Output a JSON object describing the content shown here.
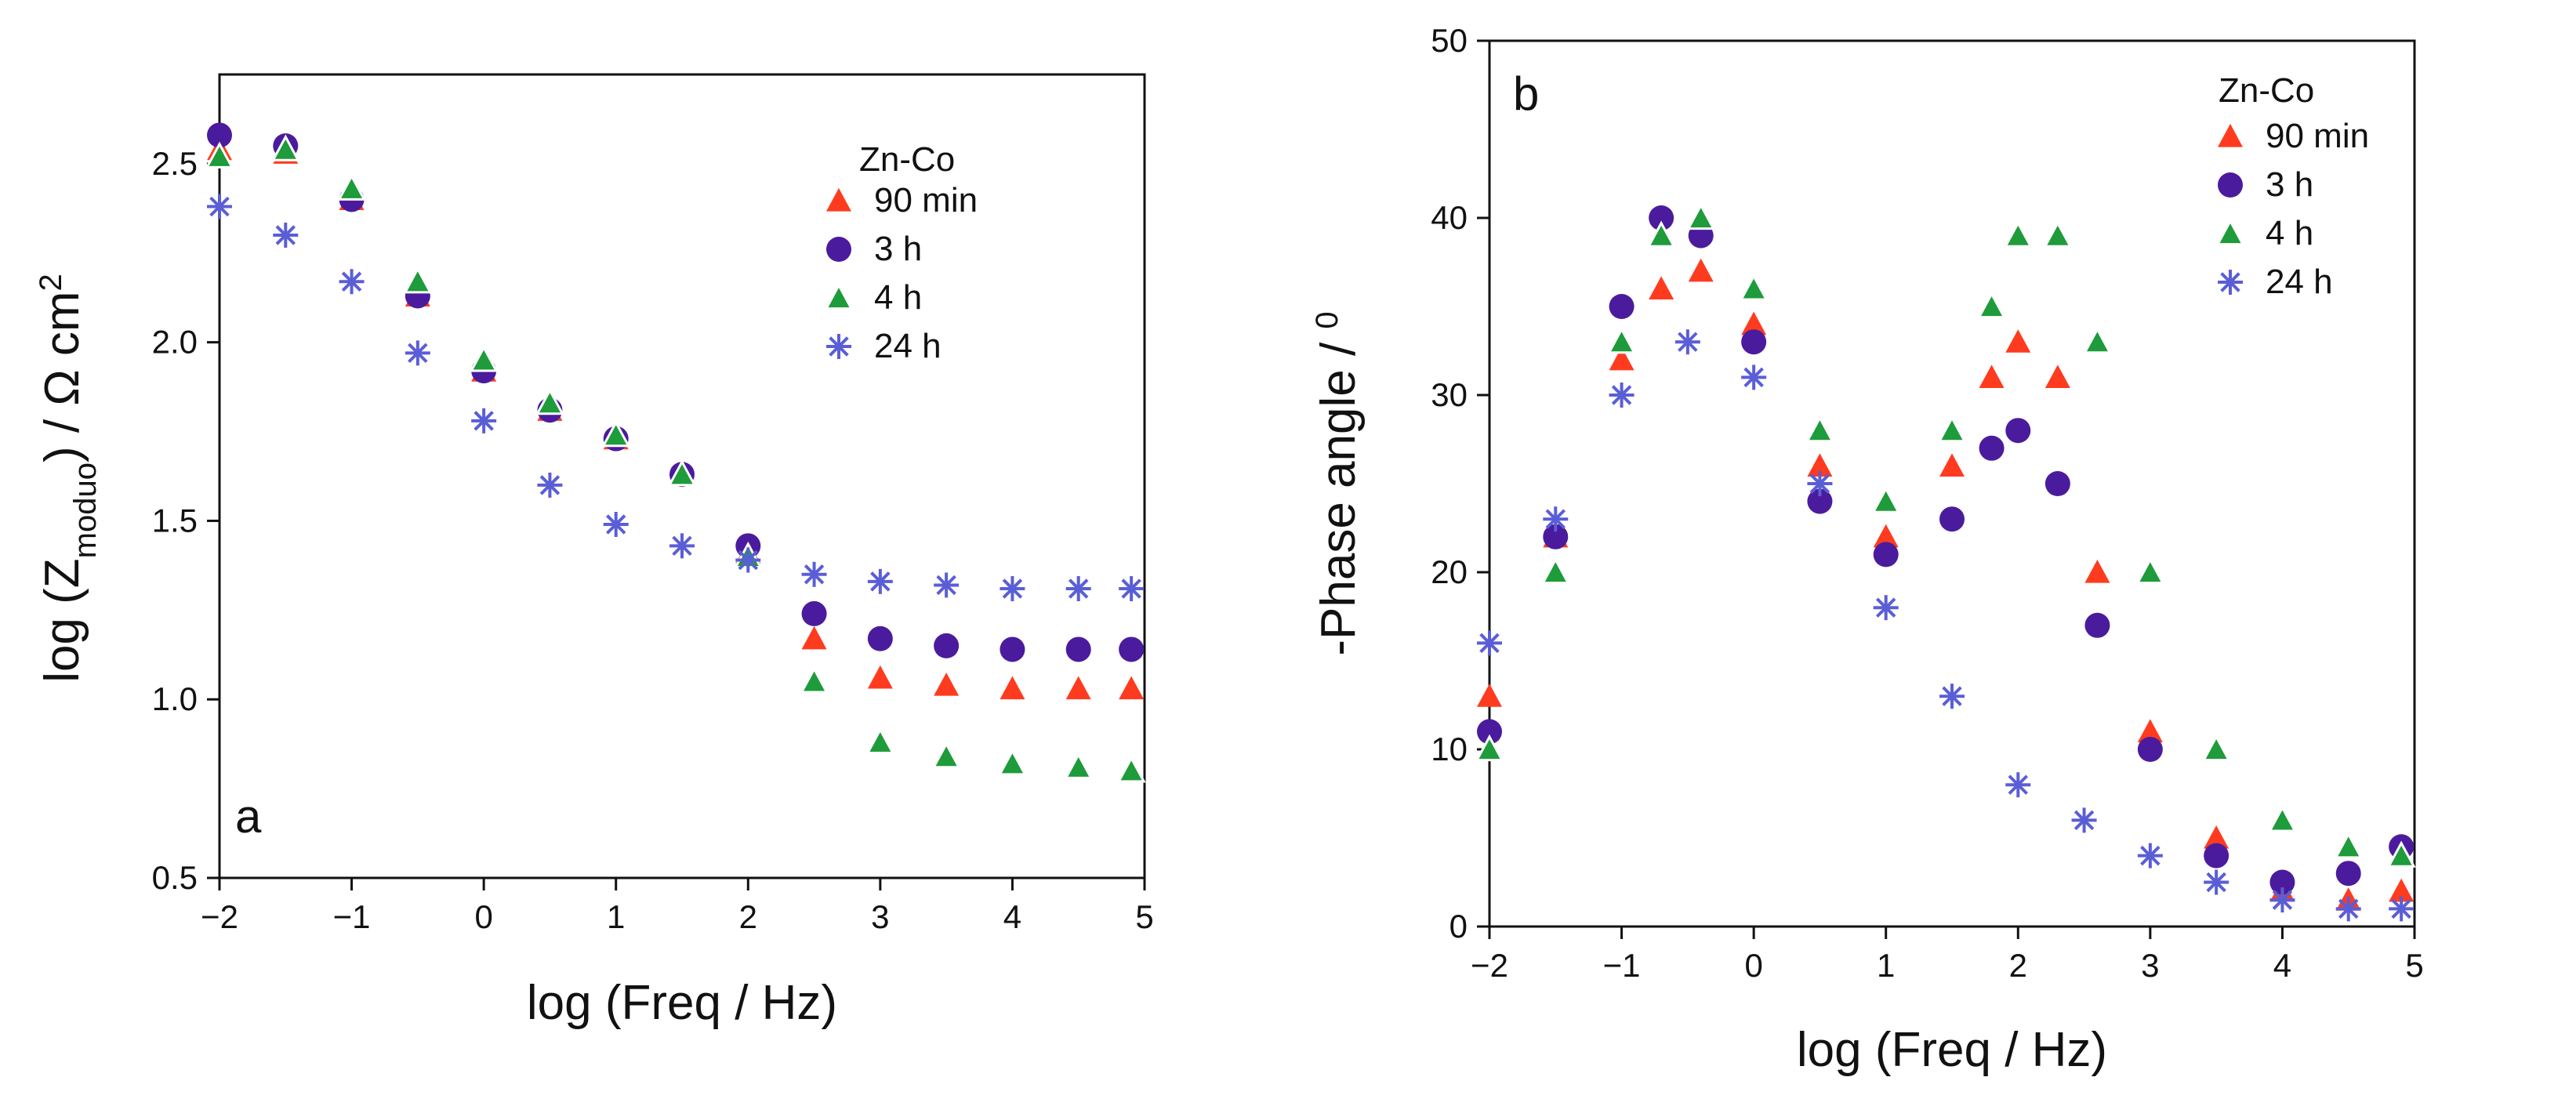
{
  "chart_data": [
    {
      "type": "scatter",
      "panel_label": "a",
      "xlabel": "log (Freq / Hz)",
      "ylabel_parts": {
        "prefix": "log (Z",
        "subscript": "moduo",
        "mid": ") / Ω cm",
        "superscript": "2"
      },
      "xlim": [
        -2,
        5
      ],
      "ylim": [
        0.5,
        2.75
      ],
      "xticks": [
        -2,
        -1,
        0,
        1,
        2,
        3,
        4,
        5
      ],
      "xtick_labels": [
        "−2",
        "−1",
        "0",
        "1",
        "2",
        "3",
        "4",
        "5"
      ],
      "yticks": [
        0.5,
        1.0,
        1.5,
        2.0,
        2.5
      ],
      "ytick_labels": [
        "0.5",
        "1.0",
        "1.5",
        "2.0",
        "2.5"
      ],
      "legend": {
        "title": "Zn-Co",
        "placement": "top-right"
      },
      "grid": false,
      "series": [
        {
          "name": "90 min",
          "marker": "triangle",
          "color": "#ff3b1f",
          "x": [
            -2,
            -1.5,
            -1,
            -0.5,
            0,
            0.5,
            1,
            1.5,
            2,
            2.5,
            3,
            3.5,
            4,
            4.5,
            4.9
          ],
          "y": [
            2.54,
            2.53,
            2.4,
            2.13,
            1.92,
            1.81,
            1.73,
            1.63,
            1.41,
            1.17,
            1.06,
            1.04,
            1.03,
            1.03,
            1.03
          ]
        },
        {
          "name": "3 h",
          "marker": "circle",
          "color": "#4b1b9e",
          "x": [
            -2,
            -1.5,
            -1,
            -0.5,
            0,
            0.5,
            1,
            1.5,
            2,
            2.5,
            3,
            3.5,
            4,
            4.5,
            4.9
          ],
          "y": [
            2.58,
            2.55,
            2.4,
            2.13,
            1.92,
            1.81,
            1.73,
            1.63,
            1.43,
            1.24,
            1.17,
            1.15,
            1.14,
            1.14,
            1.14
          ]
        },
        {
          "name": "4 h",
          "marker": "triangle-open",
          "color": "#1e9b3a",
          "x": [
            -2,
            -1.5,
            -1,
            -0.5,
            0,
            0.5,
            1,
            1.5,
            2,
            2.5,
            3,
            3.5,
            4,
            4.5,
            4.9
          ],
          "y": [
            2.52,
            2.54,
            2.43,
            2.17,
            1.95,
            1.83,
            1.74,
            1.63,
            1.4,
            1.05,
            0.88,
            0.84,
            0.82,
            0.81,
            0.8
          ]
        },
        {
          "name": "24 h",
          "marker": "asterisk",
          "color": "#5a5ed6",
          "x": [
            -2,
            -1.5,
            -1,
            -0.5,
            0,
            0.5,
            1,
            1.5,
            2,
            2.5,
            3,
            3.5,
            4,
            4.5,
            4.9
          ],
          "y": [
            2.38,
            2.3,
            2.17,
            1.97,
            1.78,
            1.6,
            1.49,
            1.43,
            1.39,
            1.35,
            1.33,
            1.32,
            1.31,
            1.31,
            1.31
          ]
        }
      ]
    },
    {
      "type": "scatter",
      "panel_label": "b",
      "xlabel": "log (Freq / Hz)",
      "ylabel_parts": {
        "prefix": "-Phase angle / ",
        "superscript": "0"
      },
      "xlim": [
        -2,
        5
      ],
      "ylim": [
        0,
        50
      ],
      "xticks": [
        -2,
        -1,
        0,
        1,
        2,
        3,
        4,
        5
      ],
      "xtick_labels": [
        "−2",
        "−1",
        "0",
        "1",
        "2",
        "3",
        "4",
        "5"
      ],
      "yticks": [
        0,
        10,
        20,
        30,
        40,
        50
      ],
      "ytick_labels": [
        "0",
        "10",
        "20",
        "30",
        "40",
        "50"
      ],
      "legend": {
        "title": "Zn-Co",
        "placement": "top-right"
      },
      "grid": false,
      "series": [
        {
          "name": "90 min",
          "marker": "triangle",
          "color": "#ff3b1f",
          "x": [
            -2,
            -1.5,
            -1,
            -0.7,
            -0.4,
            0,
            0.5,
            1,
            1.5,
            1.8,
            2,
            2.3,
            2.6,
            3,
            3.5,
            4,
            4.5,
            4.9
          ],
          "y": [
            13,
            22,
            32,
            36,
            37,
            34,
            26,
            22,
            26,
            31,
            33,
            31,
            20,
            11,
            5,
            2,
            1.5,
            2
          ]
        },
        {
          "name": "3 h",
          "marker": "circle",
          "color": "#4b1b9e",
          "x": [
            -2,
            -1.5,
            -1,
            -0.7,
            -0.4,
            0,
            0.5,
            1,
            1.5,
            1.8,
            2,
            2.3,
            2.6,
            3,
            3.5,
            4,
            4.5,
            4.9
          ],
          "y": [
            11,
            22,
            35,
            40,
            39,
            33,
            24,
            21,
            23,
            27,
            28,
            25,
            17,
            10,
            4,
            2.5,
            3,
            4.5
          ]
        },
        {
          "name": "4 h",
          "marker": "triangle-open",
          "color": "#1e9b3a",
          "x": [
            -2,
            -1.5,
            -1,
            -0.7,
            -0.4,
            0,
            0.5,
            1,
            1.5,
            1.8,
            2,
            2.3,
            2.6,
            3,
            3.5,
            4,
            4.5,
            4.9
          ],
          "y": [
            10,
            20,
            33,
            39,
            40,
            36,
            28,
            24,
            28,
            35,
            39,
            39,
            33,
            20,
            10,
            6,
            4.5,
            4
          ]
        },
        {
          "name": "24 h",
          "marker": "asterisk",
          "color": "#5a5ed6",
          "x": [
            -2,
            -1.5,
            -1,
            -0.5,
            0,
            0.5,
            1,
            1.5,
            2,
            2.5,
            3,
            3.5,
            4,
            4.5,
            4.9
          ],
          "y": [
            16,
            23,
            30,
            33,
            31,
            25,
            18,
            13,
            8,
            6,
            4,
            2.5,
            1.5,
            1,
            1
          ]
        }
      ]
    }
  ]
}
